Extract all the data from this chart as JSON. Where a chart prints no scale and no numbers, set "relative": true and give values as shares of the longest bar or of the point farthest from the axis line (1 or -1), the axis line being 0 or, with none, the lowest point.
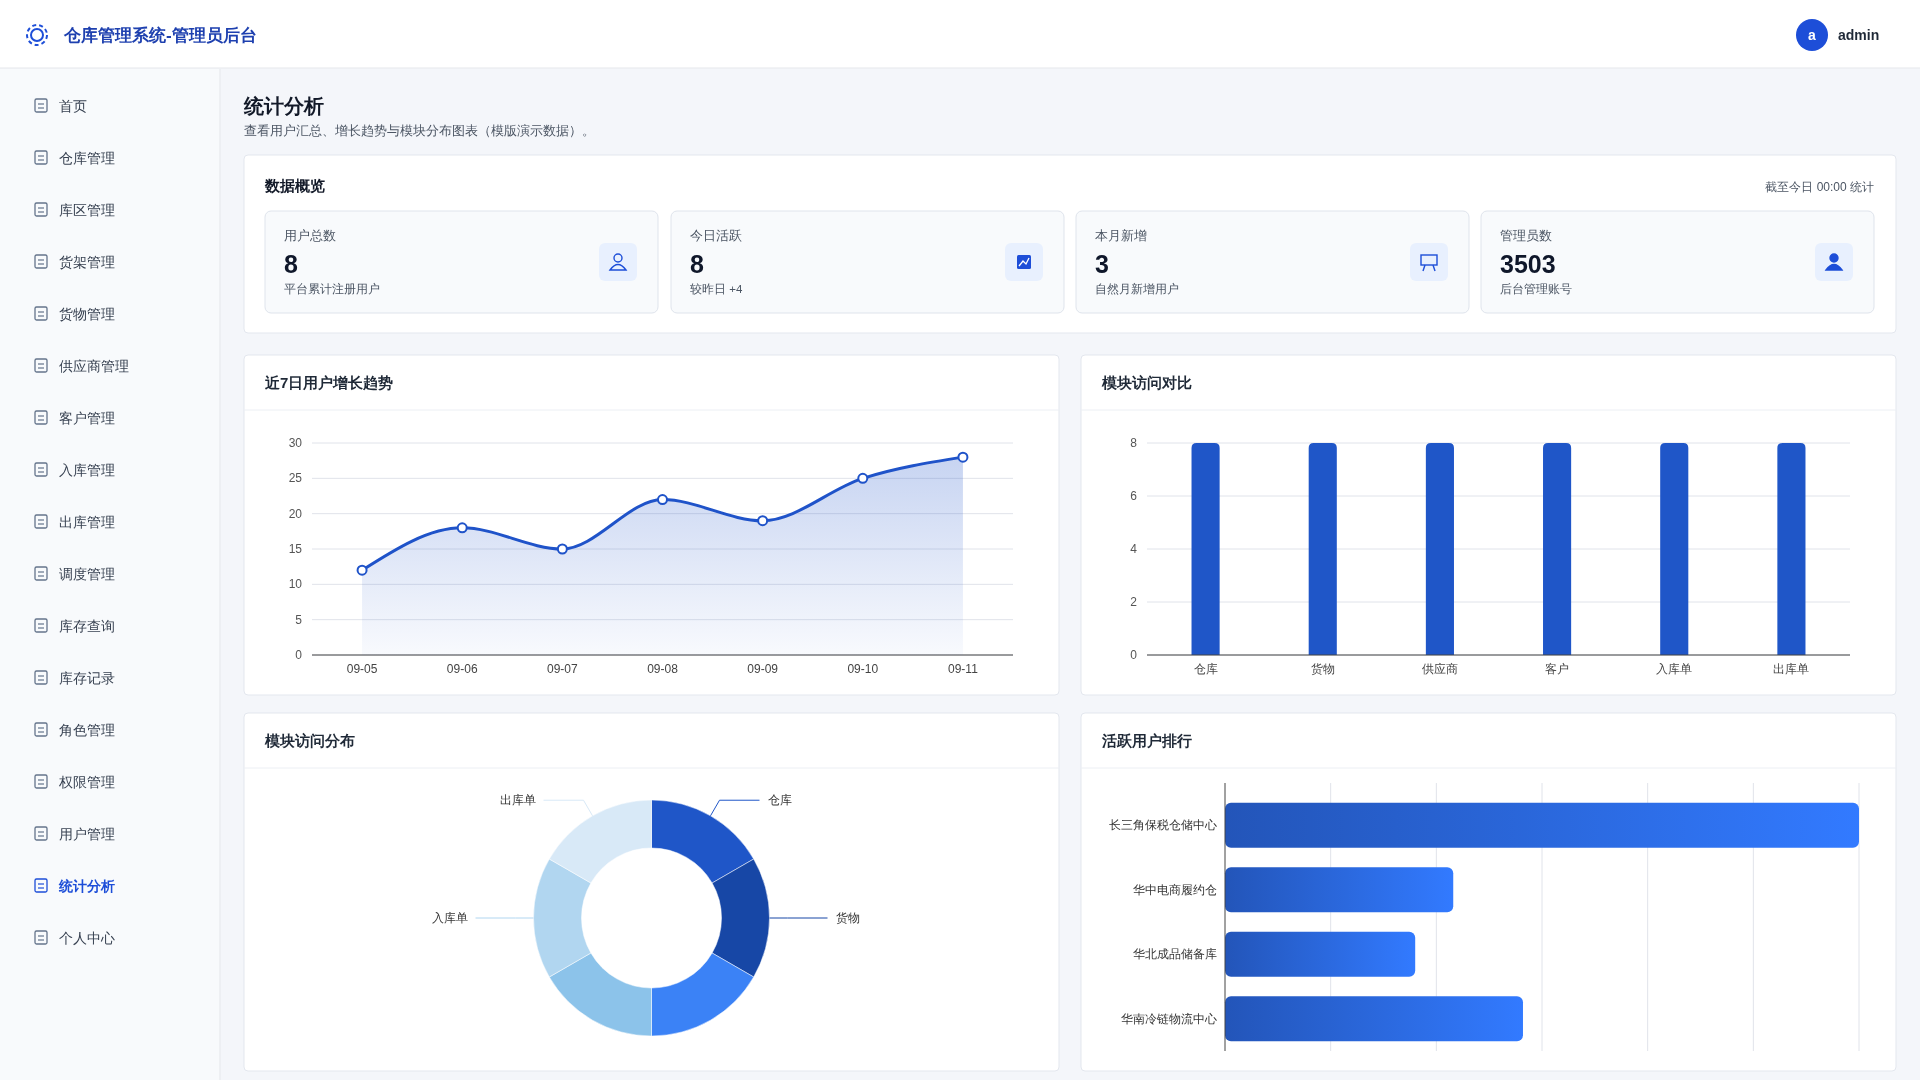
{
  "chart_data": [
    {
      "type": "other",
      "title": "统计分析",
      "subtitle": "查看用户汇总、增长趋势与模块分布图表（模版演示数据）。",
      "annotations": [
        "仓库管理系统-管理员后台",
        "a",
        "admin",
        "首页",
        "仓库管理",
        "库区管理",
        "货架管理",
        "货物管理",
        "供应商管理",
        "客户管理",
        "入库管理",
        "出库管理",
        "调度管理",
        "库存查询",
        "库存记录",
        "角色管理",
        "权限管理",
        "用户管理",
        "统计分析",
        "个人中心",
        "数据概览",
        "截至今日 00:00 统计",
        "用户总数",
        "8",
        "平台累计注册用户",
        "今日活跃",
        "8",
        "较昨日 +4",
        "本月新增",
        "3",
        "自然月新增用户",
        "管理员数",
        "3503",
        "后台管理账号"
      ]
    },
    {
      "type": "area",
      "title": "近7日用户增长趋势",
      "categories": [
        "09-05",
        "09-06",
        "09-07",
        "09-08",
        "09-09",
        "09-10",
        "09-11"
      ],
      "values": [
        12,
        18,
        15,
        22,
        19,
        25,
        28
      ],
      "color": "#1f53c9",
      "ylim": [
        0,
        30
      ],
      "yticks": [
        0,
        5,
        10,
        15,
        20,
        25,
        30
      ],
      "grid": "y",
      "marker": "circle"
    },
    {
      "type": "bar",
      "title": "模块访问对比",
      "categories": [
        "仓库",
        "货物",
        "供应商",
        "客户",
        "入库单",
        "出库单"
      ],
      "values": [
        8,
        8,
        8,
        8,
        8,
        8
      ],
      "color": "#1f56c8",
      "ylim": [
        0,
        8
      ],
      "yticks": [
        0,
        2,
        4,
        6,
        8
      ],
      "grid": "y"
    },
    {
      "type": "donut",
      "title": "模块访问分布",
      "categories": [
        "仓库",
        "货物",
        null,
        null,
        "入库单",
        "出库单"
      ],
      "values": [
        16.67,
        16.67,
        16.67,
        16.67,
        16.67,
        16.67
      ],
      "colors": [
        "#1f56c8",
        "#1747a6",
        "#3b82f6",
        "#8cc3ea",
        "#b1d6f0",
        "#d8e9f7"
      ]
    },
    {
      "type": "bar",
      "title": "活跃用户排行",
      "orientation": "horizontal",
      "relative": true,
      "categories": [
        "长三角保税仓储中心",
        "华中电商履约仓",
        "华北成品储备库",
        "华南冷链物流中心"
      ],
      "values": [
        1,
        0.36,
        0.3,
        0.47
      ],
      "color": "#2a66dd",
      "grid": "x"
    }
  ]
}
